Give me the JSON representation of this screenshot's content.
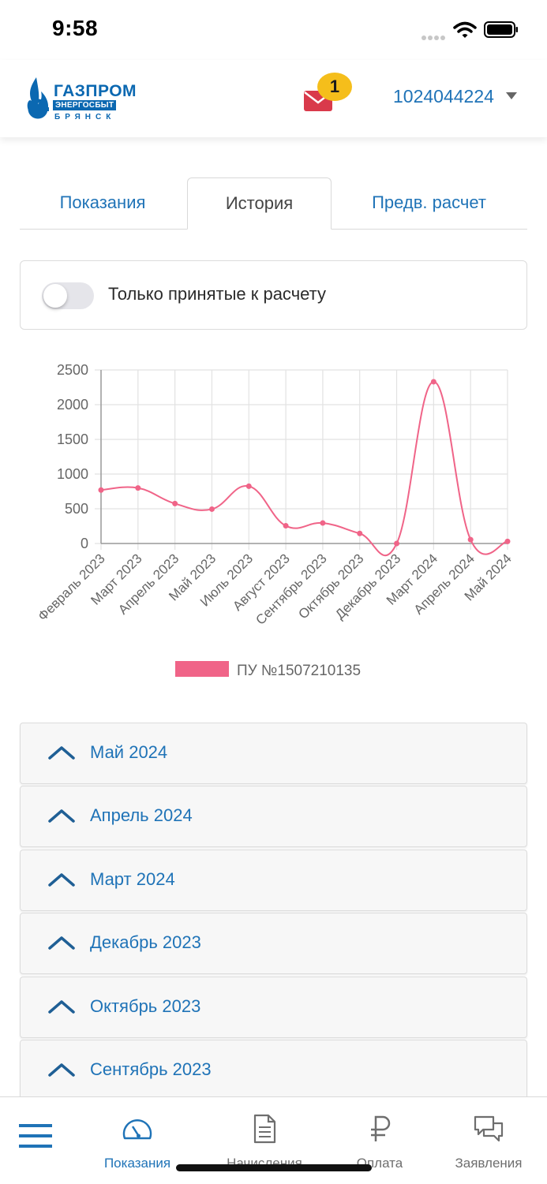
{
  "status_bar": {
    "time": "9:58"
  },
  "header": {
    "logo": {
      "word": "ГАЗПРОМ",
      "sub": "ЭНЕРГОСБЫТ",
      "city": "БРЯНСК"
    },
    "notifications_count": "1",
    "account_number": "1024044224"
  },
  "tabs": [
    {
      "label": "Показания"
    },
    {
      "label": "История"
    },
    {
      "label": "Предв. расчет"
    }
  ],
  "filter": {
    "label": "Только принятые к расчету",
    "enabled": false
  },
  "chart_data": {
    "type": "line",
    "categories": [
      "Февраль 2023",
      "Март 2023",
      "Апрель 2023",
      "Май 2023",
      "Июль 2023",
      "Август 2023",
      "Сентябрь 2023",
      "Октябрь 2023",
      "Декабрь 2023",
      "Март 2024",
      "Апрель 2024",
      "Май 2024"
    ],
    "series": [
      {
        "name": "ПУ №1507210135",
        "color": "#f06488",
        "values": [
          770,
          800,
          575,
          495,
          825,
          255,
          295,
          145,
          0,
          2330,
          55,
          30
        ]
      }
    ],
    "yticks": [
      "0",
      "500",
      "1000",
      "1500",
      "2000",
      "2500"
    ],
    "ylim": [
      0,
      2500
    ],
    "grid": true,
    "legend": "bottom"
  },
  "history": [
    {
      "label": "Май 2024"
    },
    {
      "label": "Апрель 2024"
    },
    {
      "label": "Март 2024"
    },
    {
      "label": "Декабрь 2023"
    },
    {
      "label": "Октябрь 2023"
    },
    {
      "label": "Сентябрь 2023"
    }
  ],
  "bottom_nav": [
    {
      "label": "Показания",
      "active": true
    },
    {
      "label": "Начисления",
      "active": false
    },
    {
      "label": "Оплата",
      "active": false
    },
    {
      "label": "Заявления",
      "active": false
    }
  ]
}
